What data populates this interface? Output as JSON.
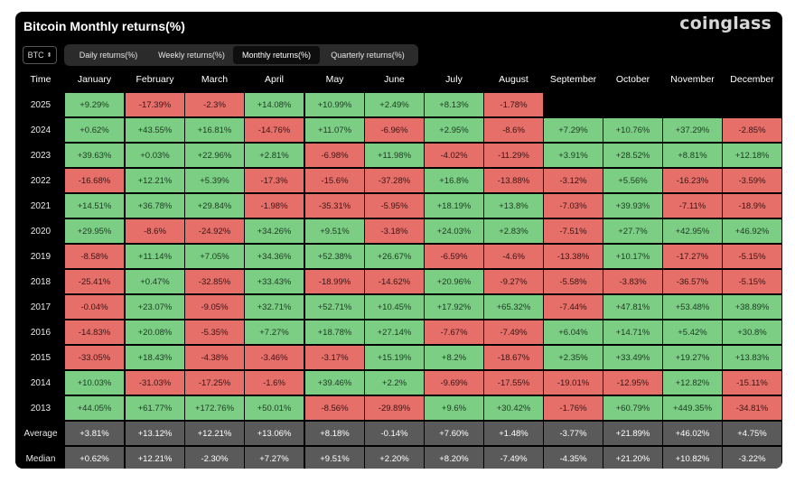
{
  "title": "Bitcoin Monthly returns(%)",
  "brand": "coinglass",
  "coin_select": {
    "value": "BTC",
    "icon": "chevron-updown-icon"
  },
  "tabs": [
    {
      "label": "Daily returns(%)",
      "active": false
    },
    {
      "label": "Weekly returns(%)",
      "active": false
    },
    {
      "label": "Monthly returns(%)",
      "active": true
    },
    {
      "label": "Quarterly returns(%)",
      "active": false
    }
  ],
  "colors": {
    "positive": "#7bce84",
    "negative": "#e66f6a",
    "stat": "#5a5a5a",
    "background": "#000000"
  },
  "table": {
    "headers": [
      "Time",
      "January",
      "February",
      "March",
      "April",
      "May",
      "June",
      "July",
      "August",
      "September",
      "October",
      "November",
      "December"
    ],
    "rows": [
      {
        "year": "2025",
        "values": [
          "+9.29%",
          "-17.39%",
          "-2.3%",
          "+14.08%",
          "+10.99%",
          "+2.49%",
          "+8.13%",
          "-1.78%",
          "",
          "",
          "",
          ""
        ]
      },
      {
        "year": "2024",
        "values": [
          "+0.62%",
          "+43.55%",
          "+16.81%",
          "-14.76%",
          "+11.07%",
          "-6.96%",
          "+2.95%",
          "-8.6%",
          "+7.29%",
          "+10.76%",
          "+37.29%",
          "-2.85%"
        ]
      },
      {
        "year": "2023",
        "values": [
          "+39.63%",
          "+0.03%",
          "+22.96%",
          "+2.81%",
          "-6.98%",
          "+11.98%",
          "-4.02%",
          "-11.29%",
          "+3.91%",
          "+28.52%",
          "+8.81%",
          "+12.18%"
        ]
      },
      {
        "year": "2022",
        "values": [
          "-16.68%",
          "+12.21%",
          "+5.39%",
          "-17.3%",
          "-15.6%",
          "-37.28%",
          "+16.8%",
          "-13.88%",
          "-3.12%",
          "+5.56%",
          "-16.23%",
          "-3.59%"
        ]
      },
      {
        "year": "2021",
        "values": [
          "+14.51%",
          "+36.78%",
          "+29.84%",
          "-1.98%",
          "-35.31%",
          "-5.95%",
          "+18.19%",
          "+13.8%",
          "-7.03%",
          "+39.93%",
          "-7.11%",
          "-18.9%"
        ]
      },
      {
        "year": "2020",
        "values": [
          "+29.95%",
          "-8.6%",
          "-24.92%",
          "+34.26%",
          "+9.51%",
          "-3.18%",
          "+24.03%",
          "+2.83%",
          "-7.51%",
          "+27.7%",
          "+42.95%",
          "+46.92%"
        ]
      },
      {
        "year": "2019",
        "values": [
          "-8.58%",
          "+11.14%",
          "+7.05%",
          "+34.36%",
          "+52.38%",
          "+26.67%",
          "-6.59%",
          "-4.6%",
          "-13.38%",
          "+10.17%",
          "-17.27%",
          "-5.15%"
        ]
      },
      {
        "year": "2018",
        "values": [
          "-25.41%",
          "+0.47%",
          "-32.85%",
          "+33.43%",
          "-18.99%",
          "-14.62%",
          "+20.96%",
          "-9.27%",
          "-5.58%",
          "-3.83%",
          "-36.57%",
          "-5.15%"
        ]
      },
      {
        "year": "2017",
        "values": [
          "-0.04%",
          "+23.07%",
          "-9.05%",
          "+32.71%",
          "+52.71%",
          "+10.45%",
          "+17.92%",
          "+65.32%",
          "-7.44%",
          "+47.81%",
          "+53.48%",
          "+38.89%"
        ]
      },
      {
        "year": "2016",
        "values": [
          "-14.83%",
          "+20.08%",
          "-5.35%",
          "+7.27%",
          "+18.78%",
          "+27.14%",
          "-7.67%",
          "-7.49%",
          "+6.04%",
          "+14.71%",
          "+5.42%",
          "+30.8%"
        ]
      },
      {
        "year": "2015",
        "values": [
          "-33.05%",
          "+18.43%",
          "-4.38%",
          "-3.46%",
          "-3.17%",
          "+15.19%",
          "+8.2%",
          "-18.67%",
          "+2.35%",
          "+33.49%",
          "+19.27%",
          "+13.83%"
        ]
      },
      {
        "year": "2014",
        "values": [
          "+10.03%",
          "-31.03%",
          "-17.25%",
          "-1.6%",
          "+39.46%",
          "+2.2%",
          "-9.69%",
          "-17.55%",
          "-19.01%",
          "-12.95%",
          "+12.82%",
          "-15.11%"
        ]
      },
      {
        "year": "2013",
        "values": [
          "+44.05%",
          "+61.77%",
          "+172.76%",
          "+50.01%",
          "-8.56%",
          "-29.89%",
          "+9.6%",
          "+30.42%",
          "-1.76%",
          "+60.79%",
          "+449.35%",
          "-34.81%"
        ]
      }
    ],
    "stats": [
      {
        "label": "Average",
        "values": [
          "+3.81%",
          "+13.12%",
          "+12.21%",
          "+13.06%",
          "+8.18%",
          "-0.14%",
          "+7.60%",
          "+1.48%",
          "-3.77%",
          "+21.89%",
          "+46.02%",
          "+4.75%"
        ]
      },
      {
        "label": "Median",
        "values": [
          "+0.62%",
          "+12.21%",
          "-2.30%",
          "+7.27%",
          "+9.51%",
          "+2.20%",
          "+8.20%",
          "-7.49%",
          "-4.35%",
          "+21.20%",
          "+10.82%",
          "-3.22%"
        ]
      }
    ]
  }
}
